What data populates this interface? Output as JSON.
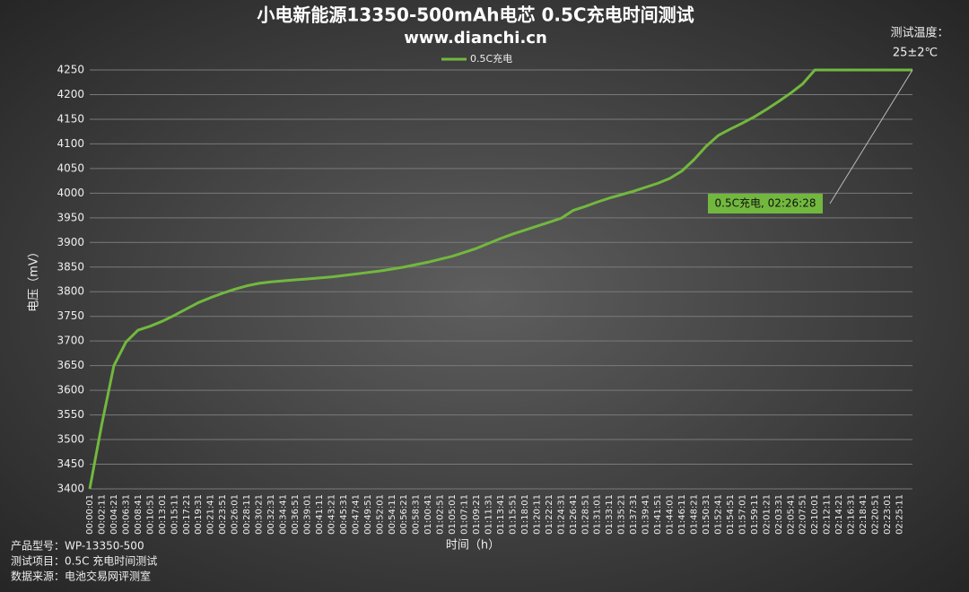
{
  "chart_data": {
    "type": "line",
    "title": "小电新能源13350-500mAh电芯 0.5C充电时间测试",
    "subtitle": "www.dianchi.cn",
    "temperature_label": "测试温度：",
    "temperature": "25±2℃",
    "x_label": "时间（h）",
    "y_label": "电压（mV）",
    "annotation": "0.5C充电, 02:26:28",
    "footer": [
      "产品型号：WP-13350-500",
      "测试项目：0.5C 充电时间测试",
      "数据来源：电池交易网评测室"
    ],
    "legend": "top",
    "grid": true,
    "ylim": [
      3400,
      4250
    ],
    "yticks": [
      3400,
      3450,
      3500,
      3550,
      3600,
      3650,
      3700,
      3750,
      3800,
      3850,
      3900,
      3950,
      4000,
      4050,
      4100,
      4150,
      4200,
      4250
    ],
    "categories": [
      "00:00:01",
      "00:02:11",
      "00:04:21",
      "00:06:31",
      "00:08:41",
      "00:10:51",
      "00:13:01",
      "00:15:11",
      "00:17:21",
      "00:19:31",
      "00:21:41",
      "00:23:51",
      "00:26:01",
      "00:28:11",
      "00:30:21",
      "00:32:31",
      "00:34:41",
      "00:36:51",
      "00:39:01",
      "00:41:11",
      "00:43:21",
      "00:45:31",
      "00:47:41",
      "00:49:51",
      "00:52:01",
      "00:54:11",
      "00:56:21",
      "00:58:31",
      "01:00:41",
      "01:02:51",
      "01:05:01",
      "01:07:11",
      "01:09:21",
      "01:11:31",
      "01:13:41",
      "01:15:51",
      "01:18:01",
      "01:20:11",
      "01:22:21",
      "01:24:31",
      "01:26:41",
      "01:28:51",
      "01:31:01",
      "01:33:11",
      "01:35:21",
      "01:37:31",
      "01:39:41",
      "01:41:51",
      "01:44:01",
      "01:46:11",
      "01:48:21",
      "01:50:31",
      "01:52:41",
      "01:54:51",
      "01:57:01",
      "01:59:11",
      "02:01:21",
      "02:03:31",
      "02:05:41",
      "02:07:51",
      "02:10:01",
      "02:12:11",
      "02:14:21",
      "02:16:31",
      "02:18:41",
      "02:20:51",
      "02:23:01",
      "02:25:11",
      null
    ],
    "series": [
      {
        "name": "0.5C充电",
        "color": "#72b83e",
        "values": [
          3400,
          3531,
          3650,
          3698,
          3722,
          3730,
          3740,
          3752,
          3765,
          3778,
          3788,
          3797,
          3805,
          3812,
          3817,
          3820,
          3822,
          3824,
          3826,
          3828,
          3830,
          3833,
          3836,
          3839,
          3842,
          3846,
          3850,
          3855,
          3860,
          3866,
          3872,
          3880,
          3888,
          3898,
          3908,
          3917,
          3925,
          3933,
          3941,
          3949,
          3965,
          3973,
          3982,
          3990,
          3997,
          4004,
          4012,
          4020,
          4030,
          4045,
          4068,
          4095,
          4117,
          4130,
          4142,
          4155,
          4170,
          4186,
          4203,
          4222,
          4250,
          4250,
          4250,
          4250,
          4250,
          4250,
          4250,
          4250,
          4250
        ]
      }
    ]
  }
}
